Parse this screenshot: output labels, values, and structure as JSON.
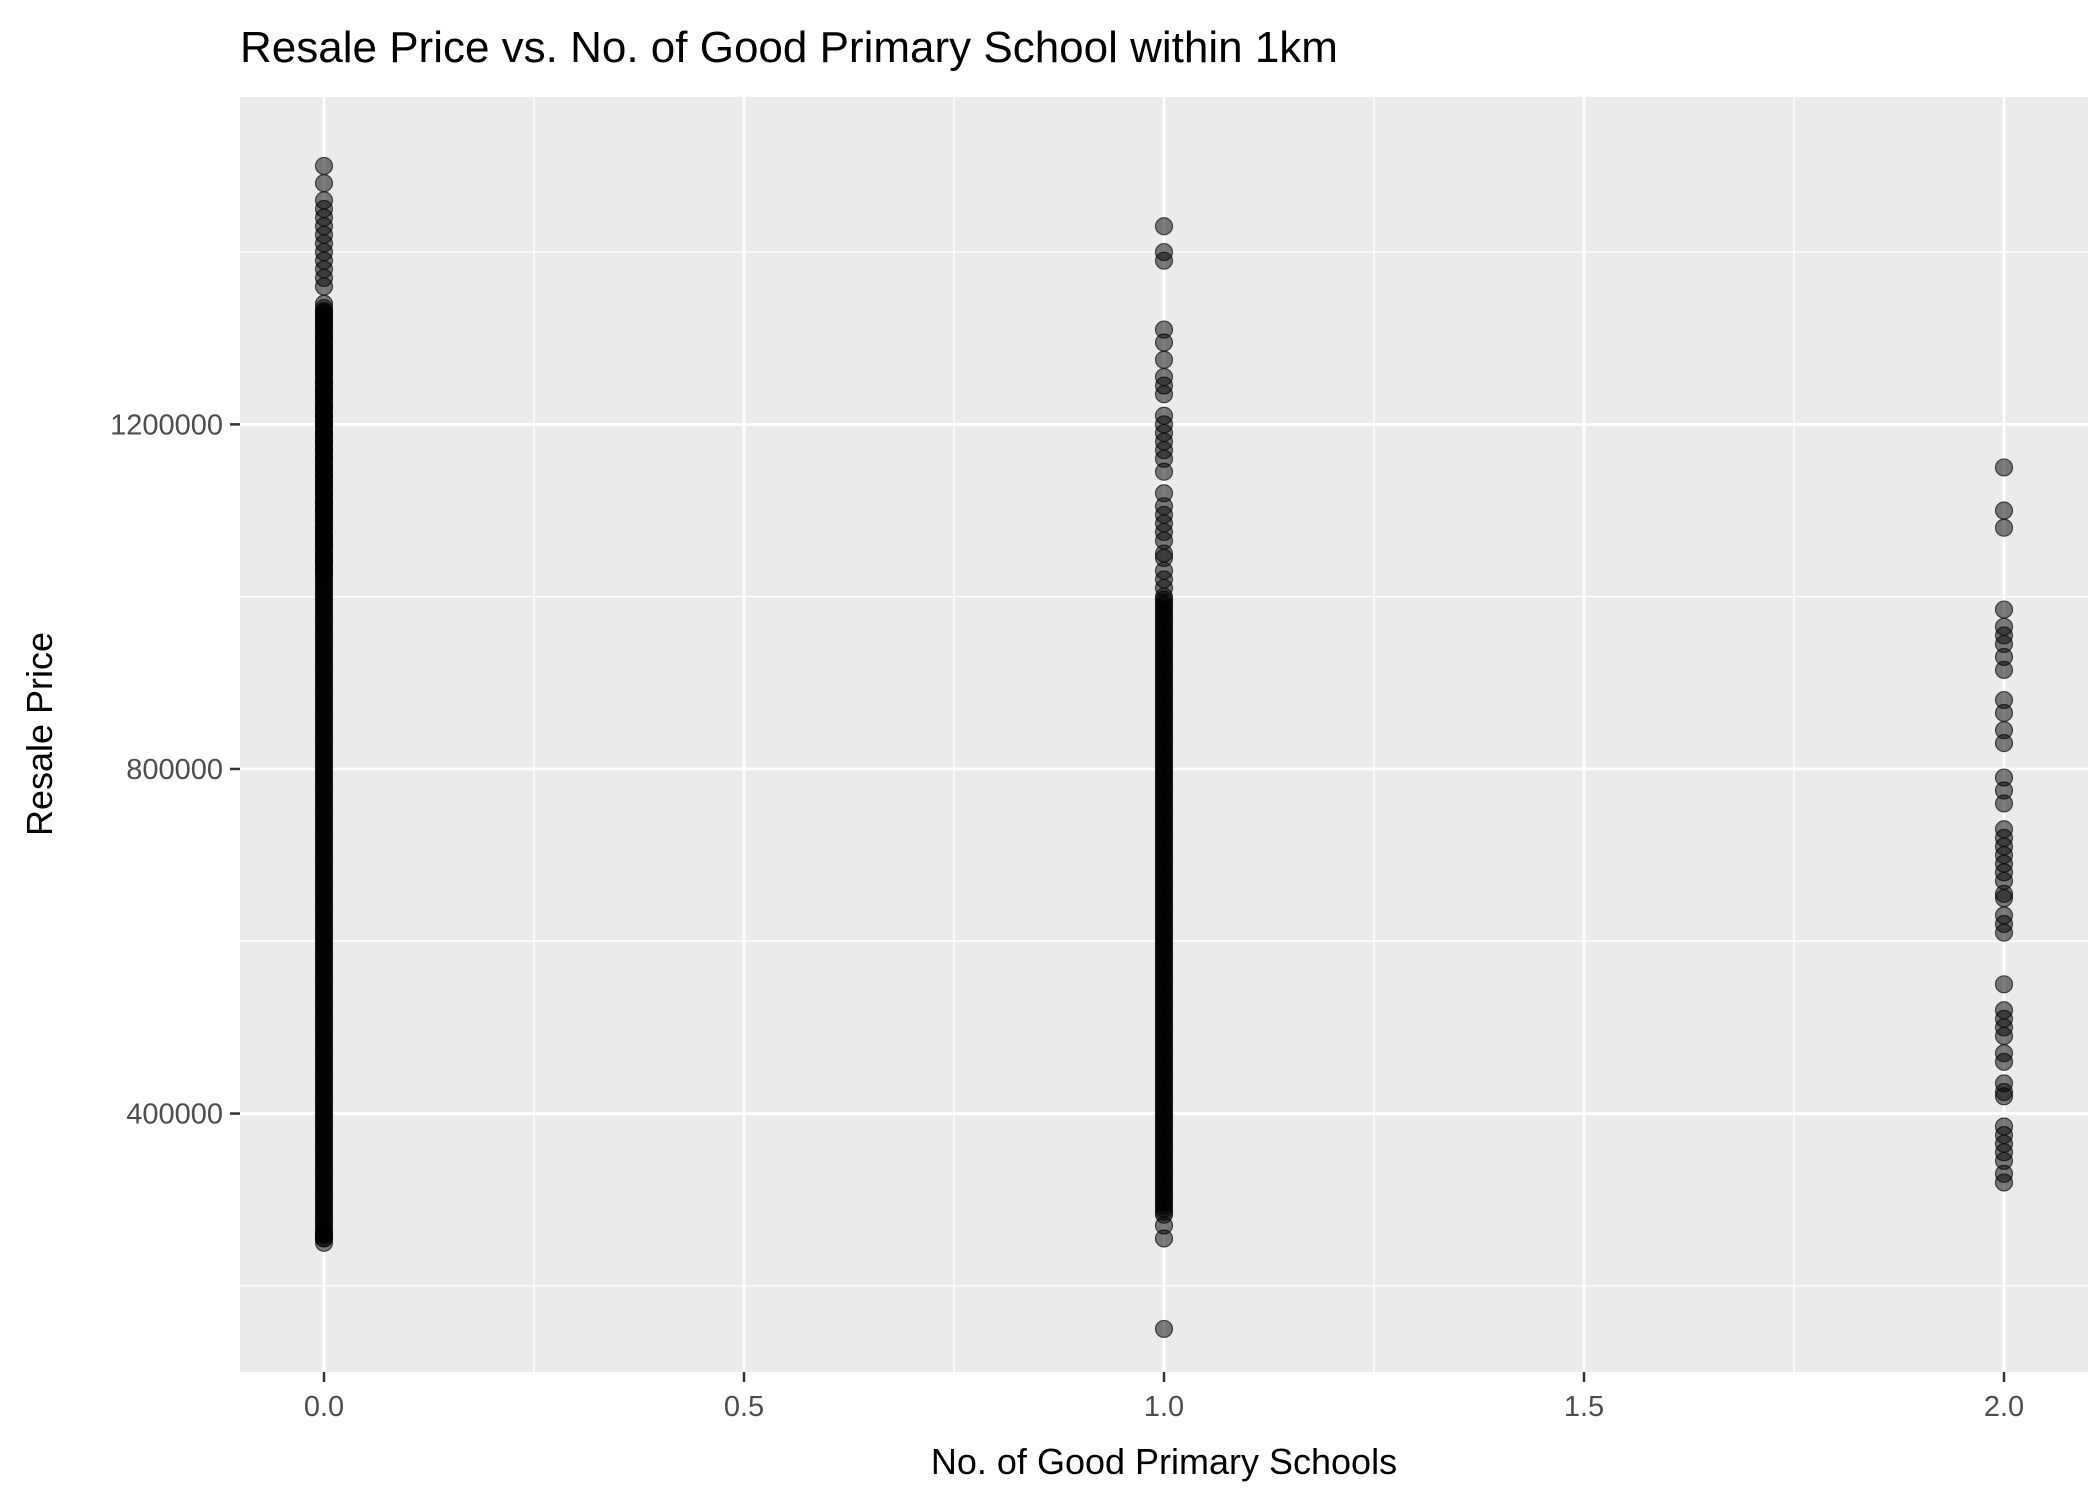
{
  "chart_data": {
    "type": "scatter",
    "title": "Resale Price vs. No. of Good Primary School within 1km",
    "xlabel": "No. of Good Primary Schools",
    "ylabel": "Resale Price",
    "xlim": [
      -0.1,
      2.1
    ],
    "ylim": [
      100000,
      1580000
    ],
    "x_ticks": [
      0.0,
      0.5,
      1.0,
      1.5,
      2.0
    ],
    "x_tick_labels": [
      "0.0",
      "0.5",
      "1.0",
      "1.5",
      "2.0"
    ],
    "y_ticks": [
      400000,
      800000,
      1200000
    ],
    "y_tick_labels": [
      "400000",
      "800000",
      "1200000"
    ],
    "grid": true,
    "panel_background": "#ebebeb",
    "point_color": "#000000",
    "point_alpha": 0.5,
    "series": [
      {
        "x": 0,
        "dense_range": [
          255000,
          1335000
        ],
        "values": [
          1500000,
          1480000,
          1460000,
          1450000,
          1440000,
          1430000,
          1420000,
          1410000,
          1400000,
          1390000,
          1380000,
          1370000,
          1360000,
          1340000,
          1330000,
          1320000,
          1310000,
          1300000,
          1290000,
          1280000,
          1270000,
          1260000,
          1250000,
          1240000,
          1230000,
          1220000,
          1210000,
          1200000,
          1190000,
          1180000,
          1170000,
          1160000,
          1150000,
          1140000,
          1130000,
          1120000,
          1110000,
          1100000,
          1090000,
          1080000,
          1070000,
          1060000,
          1050000,
          1040000,
          1030000,
          260000,
          255000,
          250000
        ]
      },
      {
        "x": 1,
        "dense_range": [
          280000,
          1000000
        ],
        "values": [
          1430000,
          1400000,
          1390000,
          1310000,
          1295000,
          1275000,
          1255000,
          1245000,
          1235000,
          1210000,
          1200000,
          1190000,
          1180000,
          1170000,
          1160000,
          1145000,
          1120000,
          1105000,
          1095000,
          1085000,
          1075000,
          1065000,
          1050000,
          1045000,
          1030000,
          1020000,
          1010000,
          270000,
          255000,
          150000
        ]
      },
      {
        "x": 2,
        "dense_range": null,
        "values": [
          1150000,
          1100000,
          1080000,
          985000,
          965000,
          955000,
          945000,
          930000,
          915000,
          880000,
          865000,
          845000,
          830000,
          790000,
          775000,
          760000,
          730000,
          720000,
          710000,
          700000,
          690000,
          680000,
          670000,
          655000,
          650000,
          630000,
          620000,
          610000,
          550000,
          520000,
          510000,
          500000,
          490000,
          470000,
          460000,
          435000,
          425000,
          420000,
          385000,
          375000,
          365000,
          355000,
          345000,
          330000,
          320000
        ]
      }
    ]
  }
}
